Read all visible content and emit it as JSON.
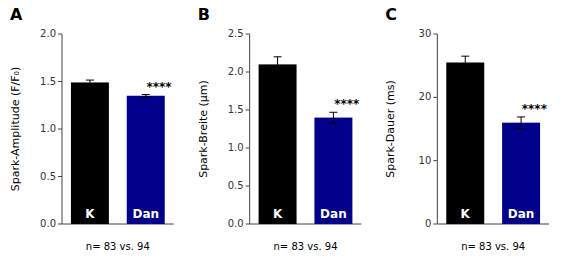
{
  "chart_data": [
    {
      "type": "bar",
      "title": "A",
      "ylabel": "Spark-Amplitude (F/F₀)",
      "categories": [
        "K",
        "Dan"
      ],
      "values": [
        1.49,
        1.35
      ],
      "errors": [
        0.025,
        0.013
      ],
      "colors": [
        "#000000",
        "#00008B"
      ],
      "ylim": [
        0,
        2.0
      ],
      "yticks": [
        {
          "value": 0.0,
          "label": "0.0"
        },
        0.5,
        {
          "value": 1.0,
          "label": "1.0"
        },
        1.5,
        {
          "value": 2.0,
          "label": "2.0"
        }
      ],
      "annotations": [
        {
          "text": "****",
          "category": "Dan"
        },
        {
          "text": "n= 83  vs.  94"
        }
      ]
    },
    {
      "type": "bar",
      "title": "B",
      "ylabel": "Spark-Breite (µm)",
      "categories": [
        "K",
        "Dan"
      ],
      "values": [
        2.1,
        1.4
      ],
      "errors": [
        0.1,
        0.07
      ],
      "colors": [
        "#000000",
        "#00008B"
      ],
      "ylim": [
        0,
        2.5
      ],
      "yticks": [
        {
          "value": 0.0,
          "label": "0.0"
        },
        0.5,
        {
          "value": 1.0,
          "label": "1.0"
        },
        1.5,
        {
          "value": 2.0,
          "label": "2.0"
        },
        2.5
      ],
      "annotations": [
        {
          "text": "****",
          "category": "Dan"
        },
        {
          "text": "n= 83  vs.  94"
        }
      ]
    },
    {
      "type": "bar",
      "title": "C",
      "ylabel": "Spark-Dauer (ms)",
      "categories": [
        "K",
        "Dan"
      ],
      "values": [
        25.5,
        16.0
      ],
      "errors": [
        1.0,
        0.9
      ],
      "colors": [
        "#000000",
        "#00008B"
      ],
      "ylim": [
        0,
        30
      ],
      "yticks": [
        0,
        10,
        20,
        30
      ],
      "annotations": [
        {
          "text": "****",
          "category": "Dan"
        },
        {
          "text": "n= 83  vs.  94"
        }
      ]
    }
  ]
}
